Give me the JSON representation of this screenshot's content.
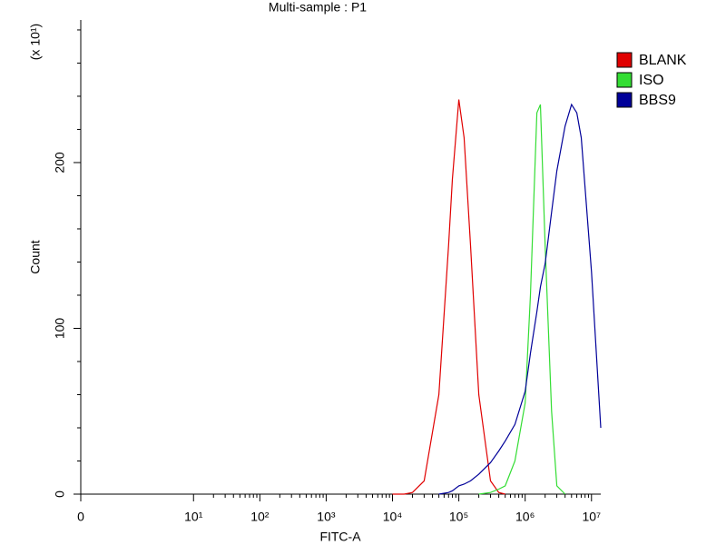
{
  "chart_data": {
    "type": "line",
    "title": "Multi-sample : P1",
    "x_label": "FITC-A",
    "y_label": "Count",
    "y_multiplier": "(x 10¹)",
    "xscale": "symlog",
    "xlim": [
      0,
      13800000
    ],
    "xticks": [
      0,
      {
        "value": 10,
        "label": "10¹"
      },
      {
        "value": 100,
        "label": "10²"
      },
      {
        "value": 1000,
        "label": "10³"
      },
      {
        "value": 10000,
        "label": "10⁴"
      },
      {
        "value": 100000,
        "label": "10⁵"
      },
      {
        "value": 1000000,
        "label": "10⁶"
      },
      {
        "value": 10000000,
        "label": "10⁷"
      }
    ],
    "xminorticks": [
      20,
      30,
      40,
      50,
      60,
      70,
      80,
      90,
      200,
      300,
      400,
      500,
      600,
      700,
      800,
      900,
      2000,
      3000,
      4000,
      5000,
      6000,
      7000,
      8000,
      9000,
      20000,
      30000,
      40000,
      50000,
      60000,
      70000,
      80000,
      90000,
      200000,
      300000,
      400000,
      500000,
      600000,
      700000,
      800000,
      900000,
      2000000,
      3000000,
      4000000,
      5000000,
      6000000,
      7000000,
      8000000,
      9000000
    ],
    "ylim": [
      0,
      286
    ],
    "yticks": [
      0,
      100,
      200
    ],
    "yminorticks": [
      20,
      40,
      60,
      80,
      120,
      140,
      160,
      180,
      220,
      240,
      260,
      280
    ],
    "legend": "right",
    "x": [
      10000,
      15000,
      20000,
      30000,
      50000,
      70000,
      80000,
      100000,
      120000,
      150000,
      200000,
      300000,
      400000,
      500000,
      700000,
      1000000,
      1200000,
      1500000,
      1700000,
      2000000,
      2500000,
      3000000,
      4000000,
      5000000,
      6000000,
      7000000,
      10000000,
      13800000
    ],
    "series": [
      {
        "name": "BLANK",
        "color": "#e00000",
        "values": [
          0,
          0,
          1,
          8,
          60,
          150,
          190,
          238,
          215,
          150,
          60,
          8,
          1,
          0,
          null,
          null,
          null,
          null,
          null,
          null,
          null,
          null,
          null,
          null,
          null,
          null,
          null,
          null
        ]
      },
      {
        "name": "ISO",
        "color": "#33dd33",
        "values": [
          null,
          null,
          null,
          null,
          null,
          null,
          null,
          null,
          null,
          null,
          0,
          1,
          3,
          5,
          20,
          55,
          120,
          230,
          235,
          150,
          50,
          5,
          0,
          null,
          null,
          null,
          null,
          null
        ]
      },
      {
        "name": "BBS9",
        "color": "#000099",
        "values": [
          null,
          null,
          null,
          null,
          0,
          1,
          2,
          5,
          6,
          8,
          12,
          19,
          26,
          32,
          42,
          62,
          85,
          110,
          125,
          139,
          170,
          195,
          222,
          235,
          230,
          215,
          134,
          40
        ]
      }
    ]
  }
}
